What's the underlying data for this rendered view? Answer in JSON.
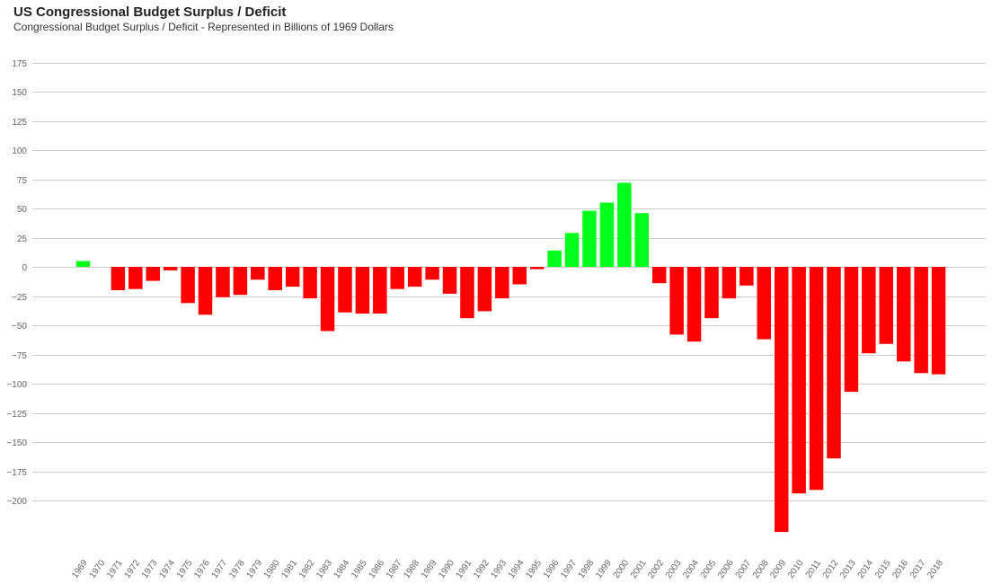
{
  "chart_data": {
    "type": "bar",
    "title": "US Congressional Budget Surplus / Deficit",
    "subtitle": "Congressional Budget Surplus / Deficit - Represented in Billions of 1969 Dollars",
    "xlabel": "",
    "ylabel": "",
    "ylim": [
      -228,
      175
    ],
    "yticks": [
      175,
      150,
      125,
      100,
      75,
      50,
      25,
      0,
      -25,
      -50,
      -75,
      -100,
      -125,
      -150,
      -175,
      -200
    ],
    "ytick_labels": [
      "175",
      "150",
      "125",
      "100",
      "75",
      "50",
      "25",
      "0",
      "−25",
      "−50",
      "−75",
      "−100",
      "−125",
      "−150",
      "−175",
      "−200"
    ],
    "grid": true,
    "legend": "none",
    "colors": {
      "surplus": "#00ff1a",
      "deficit": "#ff0000"
    },
    "categories": [
      "1969",
      "1970",
      "1971",
      "1972",
      "1973",
      "1974",
      "1975",
      "1976",
      "1977",
      "1978",
      "1979",
      "1980",
      "1981",
      "1982",
      "1983",
      "1984",
      "1985",
      "1986",
      "1987",
      "1988",
      "1989",
      "1990",
      "1991",
      "1992",
      "1993",
      "1994",
      "1995",
      "1996",
      "1997",
      "1998",
      "1999",
      "2000",
      "2001",
      "2002",
      "2003",
      "2004",
      "2005",
      "2006",
      "2007",
      "2008",
      "2009",
      "2010",
      "2011",
      "2012",
      "2013",
      "2014",
      "2015",
      "2016",
      "2017",
      "2018"
    ],
    "values": [
      5,
      0,
      -20,
      -19,
      -12,
      -3,
      -31,
      -41,
      -26,
      -24,
      -11,
      -20,
      -17,
      -27,
      -55,
      -39,
      -40,
      -40,
      -19,
      -17,
      -11,
      -23,
      -44,
      -38,
      -27,
      -15,
      -2,
      14,
      29,
      48,
      55,
      72,
      46,
      -14,
      -58,
      -64,
      -44,
      -27,
      -16,
      -62,
      -227,
      -194,
      -191,
      -164,
      -107,
      -74,
      -66,
      -81,
      -91,
      -92
    ]
  }
}
